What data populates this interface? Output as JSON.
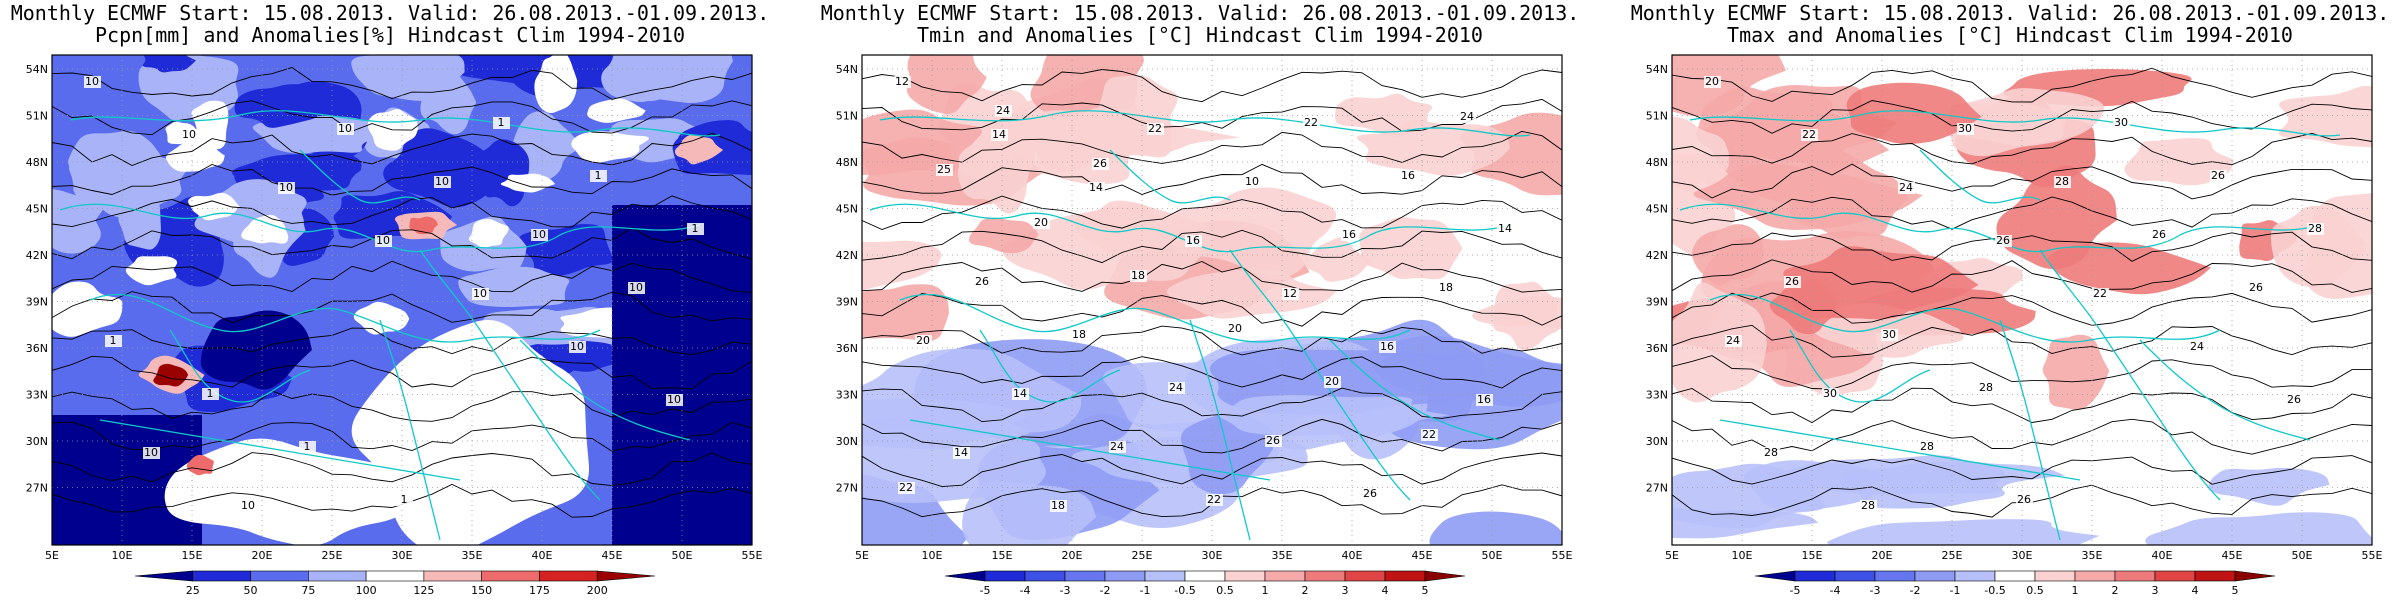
{
  "maps": [
    {
      "id": "pcpn",
      "title_line1": "Monthly ECMWF Start: 15.08.2013. Valid: 26.08.2013.-01.09.2013.",
      "title_line2": "Pcpn[mm] and Anomalies[%] Hindcast Clim 1994-2010",
      "lat_labels": [
        "54N",
        "51N",
        "48N",
        "45N",
        "42N",
        "39N",
        "36N",
        "33N",
        "30N",
        "27N"
      ],
      "lon_labels": [
        "5E",
        "10E",
        "15E",
        "20E",
        "25E",
        "30E",
        "35E",
        "40E",
        "45E",
        "50E",
        "55E"
      ],
      "colorbar": {
        "labels": [
          "25",
          "50",
          "75",
          "100",
          "125",
          "150",
          "175",
          "200"
        ],
        "colors": [
          "#00008f",
          "#1f2bd6",
          "#5a6cee",
          "#a9b4f8",
          "#ffffff",
          "#f6b9b9",
          "#ee6b6b",
          "#d62222",
          "#9a0000"
        ]
      },
      "contour_labels": [
        "10",
        "10",
        "10",
        "10",
        "10",
        "10",
        "10",
        "10",
        "10",
        "10",
        "10",
        "10",
        "10",
        "1",
        "1",
        "1",
        "1",
        "1",
        "1",
        "1"
      ],
      "fill_palette": {
        "water": "#00008f",
        "deep": "#1f2bd6",
        "mid": "#5a6cee",
        "light": "#a9b4f8",
        "neutral": "#ffffff",
        "pos1": "#f6b9b9",
        "pos2": "#ee6b6b",
        "pos3": "#9a0000"
      }
    },
    {
      "id": "tmin",
      "title_line1": "Monthly ECMWF Start: 15.08.2013. Valid: 26.08.2013.-01.09.2013.",
      "title_line2": "Tmin and Anomalies [°C] Hindcast Clim 1994-2010",
      "lat_labels": [
        "54N",
        "51N",
        "48N",
        "45N",
        "42N",
        "39N",
        "36N",
        "33N",
        "30N",
        "27N"
      ],
      "lon_labels": [
        "5E",
        "10E",
        "15E",
        "20E",
        "25E",
        "30E",
        "35E",
        "40E",
        "45E",
        "50E",
        "55E"
      ],
      "colorbar": {
        "labels": [
          "-5",
          "-4",
          "-3",
          "-2",
          "-1",
          "-0.5",
          "0.5",
          "1",
          "2",
          "3",
          "4",
          "5"
        ],
        "colors": [
          "#00008f",
          "#1f2bd6",
          "#3e4fe6",
          "#6676ef",
          "#8e9bf4",
          "#b7c0f9",
          "#ffffff",
          "#fad2d2",
          "#f5a9a9",
          "#ee7b7b",
          "#e04444",
          "#c01414",
          "#8a0000"
        ]
      },
      "contour_labels": [
        "12",
        "14",
        "14",
        "16",
        "12",
        "16",
        "16",
        "14",
        "18",
        "22",
        "10",
        "16",
        "18",
        "20",
        "14",
        "24",
        "22",
        "22",
        "16",
        "14",
        "26",
        "18",
        "24",
        "26",
        "26",
        "24",
        "25",
        "20",
        "18",
        "20",
        "20",
        "22",
        "22",
        "24",
        "26"
      ],
      "fill_palette": {
        "warm": "#fad2d2",
        "warm2": "#f5a9a9",
        "cool": "#b7c0f9",
        "cool2": "#8e9bf4"
      }
    },
    {
      "id": "tmax",
      "title_line1": "Monthly ECMWF Start: 15.08.2013. Valid: 26.08.2013.-01.09.2013.",
      "title_line2": "Tmax and Anomalies [°C] Hindcast Clim 1994-2010",
      "lat_labels": [
        "54N",
        "51N",
        "48N",
        "45N",
        "42N",
        "39N",
        "36N",
        "33N",
        "30N",
        "27N"
      ],
      "lon_labels": [
        "5E",
        "10E",
        "15E",
        "20E",
        "25E",
        "30E",
        "35E",
        "40E",
        "45E",
        "50E",
        "55E"
      ],
      "colorbar": {
        "labels": [
          "-5",
          "-4",
          "-3",
          "-2",
          "-1",
          "-0.5",
          "0.5",
          "1",
          "2",
          "3",
          "4",
          "5"
        ],
        "colors": [
          "#00008f",
          "#1f2bd6",
          "#3e4fe6",
          "#6676ef",
          "#8e9bf4",
          "#b7c0f9",
          "#ffffff",
          "#fad2d2",
          "#f5a9a9",
          "#ee7b7b",
          "#e04444",
          "#c01414",
          "#8a0000"
        ]
      },
      "contour_labels": [
        "20",
        "22",
        "24",
        "26",
        "22",
        "24",
        "26",
        "28",
        "28",
        "30",
        "28",
        "26",
        "26",
        "24",
        "30",
        "28",
        "26",
        "30",
        "26",
        "28",
        "26",
        "30",
        "28"
      ],
      "fill_palette": {
        "warm": "#fad2d2",
        "warm2": "#f5a9a9",
        "warm3": "#ee7b7b",
        "cool": "#b7c0f9"
      }
    }
  ]
}
